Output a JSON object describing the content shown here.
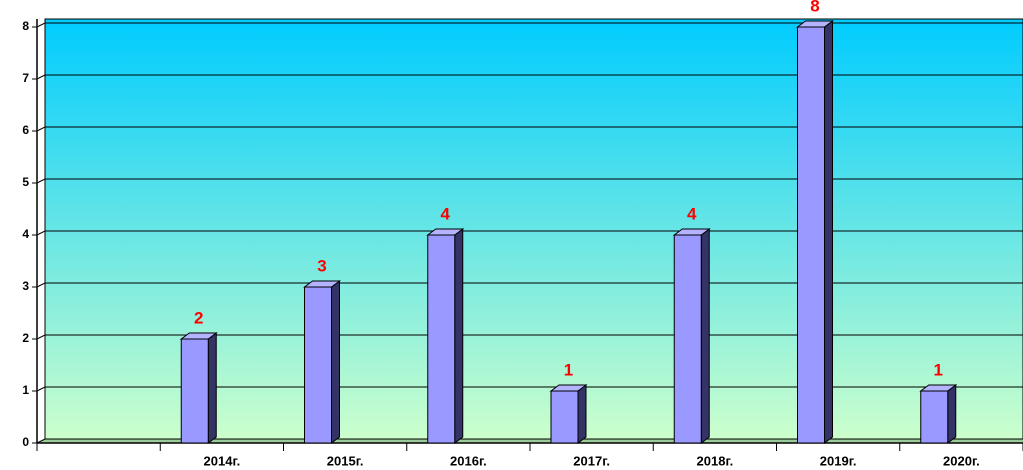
{
  "chart_data": {
    "type": "bar",
    "categories": [
      null,
      "2014г.",
      "2015г.",
      "2016г.",
      "2017г.",
      "2018г.",
      "2019г.",
      "2020г."
    ],
    "values": [
      null,
      2,
      3,
      4,
      1,
      4,
      8,
      1
    ],
    "color": "#9999ff",
    "value_label_color": "#ff0000",
    "ylim": [
      0,
      8
    ],
    "yticks": [
      0,
      1,
      2,
      3,
      4,
      5,
      6,
      7,
      8
    ],
    "grid": true
  }
}
